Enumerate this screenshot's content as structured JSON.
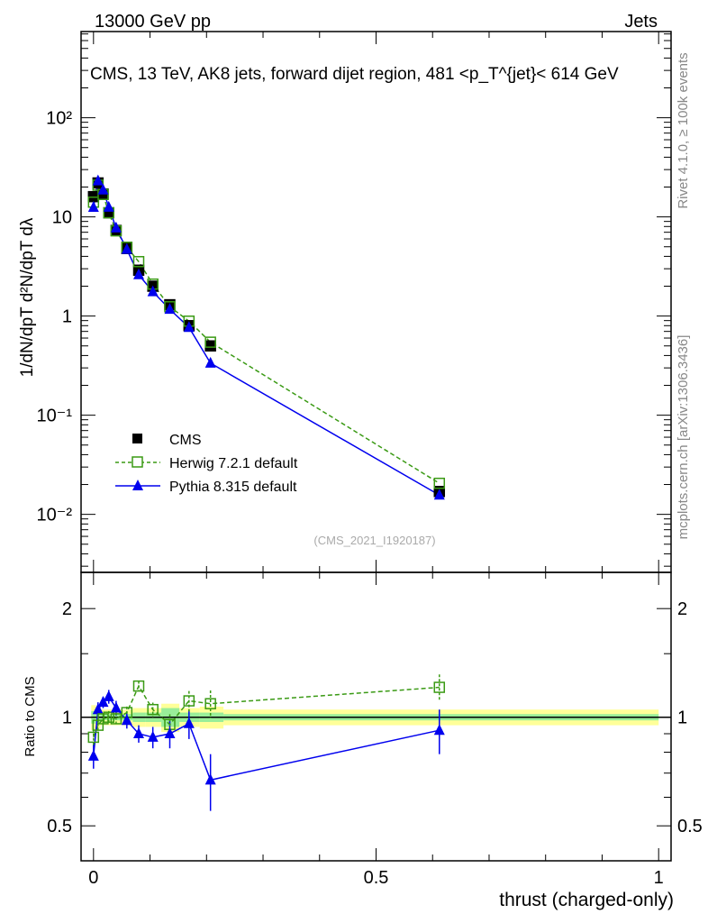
{
  "header": {
    "left": "13000 GeV pp",
    "right": "Jets"
  },
  "side": {
    "rivet": "Rivet 4.1.0, ≥ 100k events",
    "mcplots": "mcplots.cern.ch [arXiv:1306.3436]"
  },
  "chart_data": {
    "type": "line",
    "title": "CMS, 13 TeV, AK8 jets, forward dijet region, 481 <p_T^{jet}< 614 GeV",
    "analysis": "(CMS_2021_I1920187)",
    "xlabel": "thrust (charged-only)",
    "ylabel": "1/dN/dpT  d²N/dpT dλ",
    "ratio_ylabel": "Ratio to CMS",
    "xlim": [
      -0.022,
      1.022
    ],
    "ylim": [
      0.0026,
      740
    ],
    "ratio_ylim": [
      0.4,
      2.52
    ],
    "yscale": "log",
    "x_ticks": [
      "0",
      "0.5",
      "1"
    ],
    "y_ticks": [
      "10⁻²",
      "10⁻¹",
      "1",
      "10",
      "10²"
    ],
    "ratio_ticks": [
      "0.5",
      "1",
      "2"
    ],
    "legend_position": "lower-left",
    "x": [
      0.0,
      0.008,
      0.017,
      0.027,
      0.04,
      0.059,
      0.08,
      0.105,
      0.135,
      0.169,
      0.207,
      0.612
    ],
    "series": [
      {
        "name": "CMS",
        "color": "#000000",
        "values": [
          16,
          22,
          17,
          11,
          7.3,
          4.8,
          2.9,
          2.0,
          1.3,
          0.8,
          0.5,
          0.017
        ]
      },
      {
        "name": "Herwig 7.2.1 default",
        "color": "#3a9a14",
        "ratio": [
          0.88,
          0.95,
          0.99,
          1.0,
          0.99,
          1.03,
          1.22,
          1.05,
          0.955,
          1.11,
          1.09,
          1.21
        ]
      },
      {
        "name": "Pythia 8.315 default",
        "color": "#0000ee",
        "ratio": [
          0.78,
          1.05,
          1.1,
          1.14,
          1.06,
          0.98,
          0.9,
          0.88,
          0.9,
          0.96,
          0.67,
          0.92
        ]
      }
    ],
    "ratio_errors_pythia": [
      0.06,
      0.05,
      0.04,
      0.05,
      0.05,
      0.05,
      0.05,
      0.06,
      0.08,
      0.09,
      0.12,
      0.13
    ],
    "band_yellow": [
      0.08,
      0.07,
      0.05,
      0.05,
      0.05,
      0.05,
      0.06,
      0.06,
      0.09,
      0.06,
      0.07,
      0.05
    ],
    "band_green": [
      0.04,
      0.03,
      0.02,
      0.02,
      0.02,
      0.02,
      0.03,
      0.03,
      0.06,
      0.03,
      0.03,
      0.02
    ]
  }
}
